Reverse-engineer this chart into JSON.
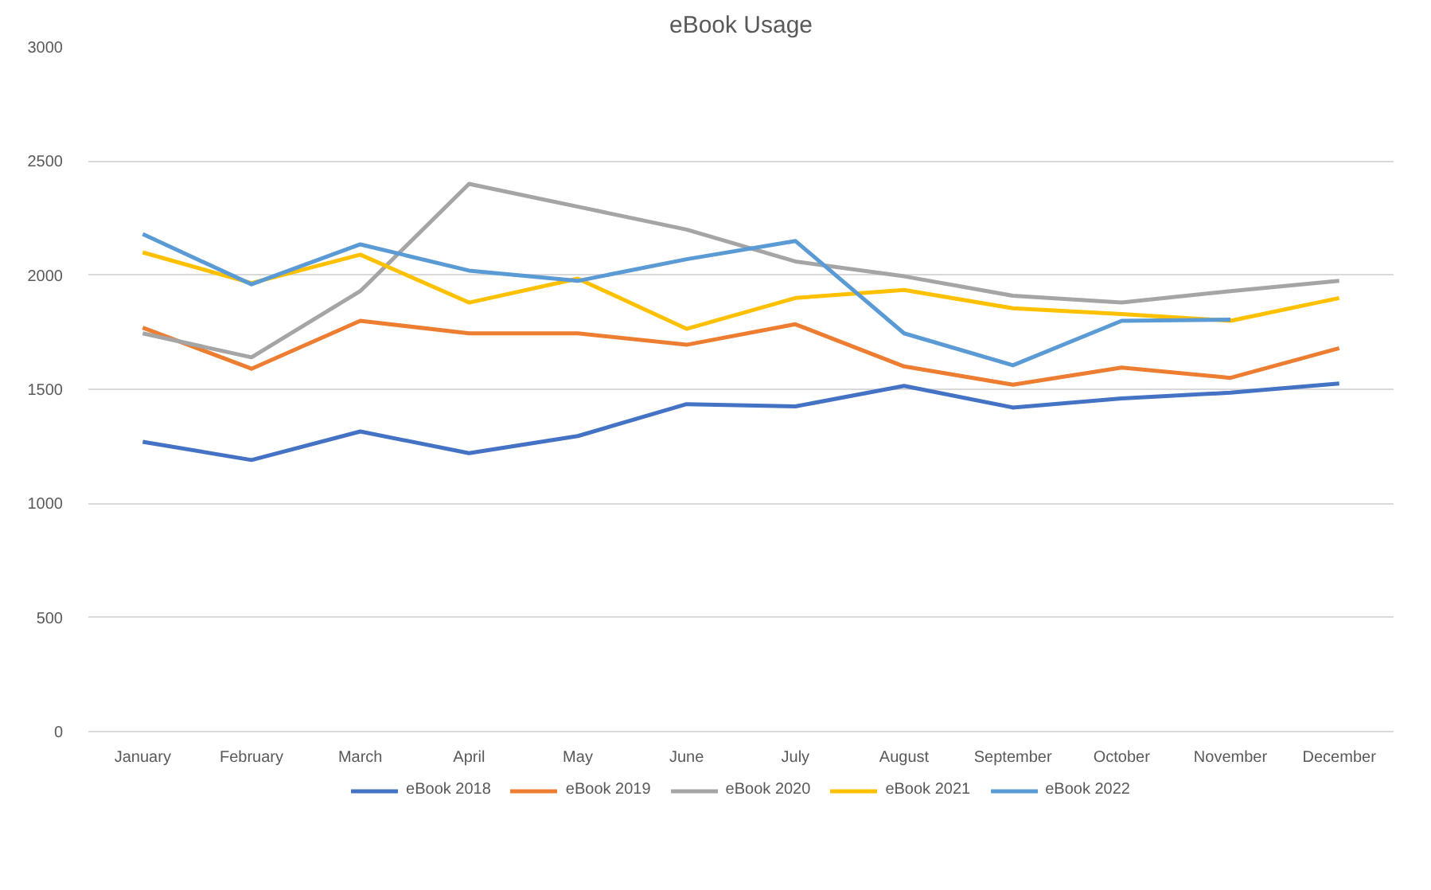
{
  "chart_data": {
    "type": "line",
    "title": "eBook Usage",
    "categories": [
      "January",
      "February",
      "March",
      "April",
      "May",
      "June",
      "July",
      "August",
      "September",
      "October",
      "November",
      "December"
    ],
    "series": [
      {
        "name": "eBook 2018",
        "color": "#4472c4",
        "values": [
          1270,
          1190,
          1315,
          1220,
          1295,
          1435,
          1425,
          1515,
          1420,
          1460,
          1485,
          1525
        ]
      },
      {
        "name": "eBook 2019",
        "color": "#ed7d31",
        "values": [
          1770,
          1590,
          1800,
          1745,
          1745,
          1695,
          1785,
          1600,
          1520,
          1595,
          1550,
          1680
        ]
      },
      {
        "name": "eBook 2020",
        "color": "#a5a5a5",
        "values": [
          1745,
          1640,
          1930,
          2400,
          2300,
          2200,
          2060,
          1995,
          1910,
          1880,
          1930,
          1975
        ]
      },
      {
        "name": "eBook 2021",
        "color": "#ffc000",
        "values": [
          2100,
          1965,
          2090,
          1880,
          1985,
          1765,
          1900,
          1935,
          1855,
          1830,
          1800,
          1900
        ]
      },
      {
        "name": "eBook 2022",
        "color": "#5b9bd5",
        "values": [
          2180,
          1960,
          2135,
          2020,
          1975,
          2070,
          2150,
          1745,
          1605,
          1800,
          1805,
          null
        ]
      }
    ],
    "ylim": [
      0,
      3000
    ],
    "yticks": [
      0,
      500,
      1000,
      1500,
      2000,
      2500,
      3000
    ],
    "grid": "y",
    "legend": "bottom",
    "marker": "none",
    "line_style": "solid"
  }
}
